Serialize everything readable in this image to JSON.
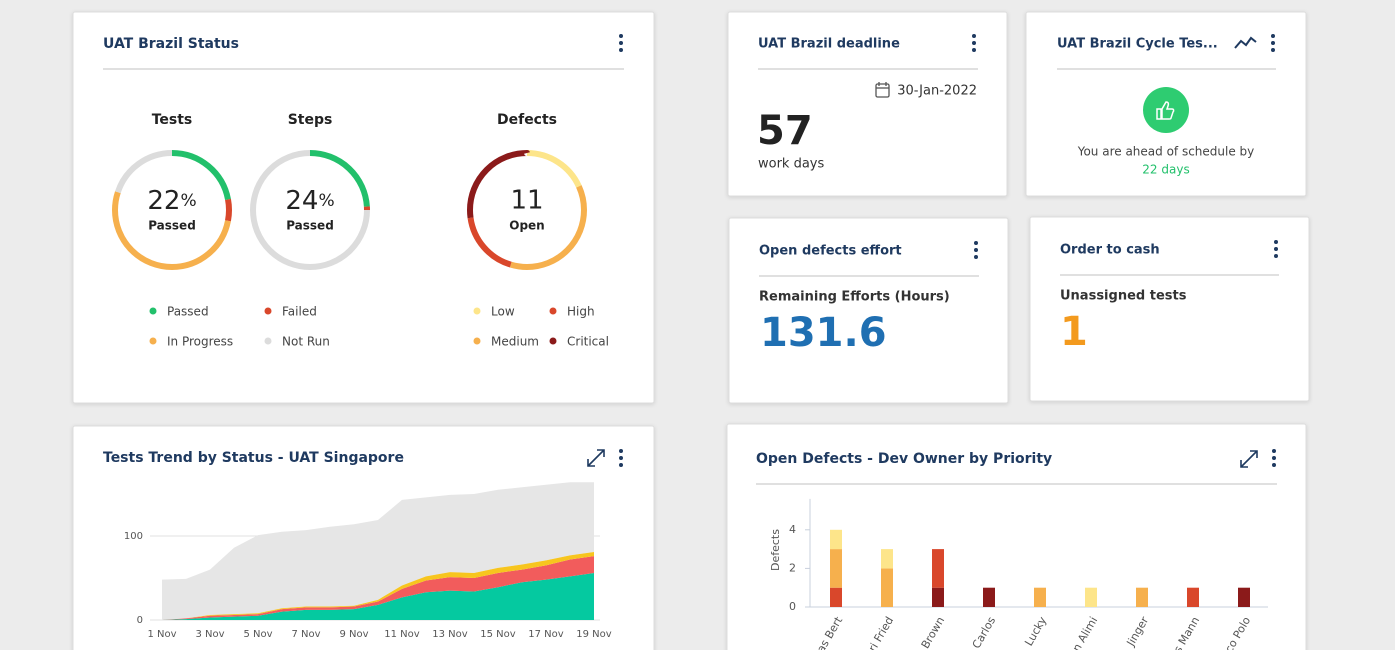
{
  "status": {
    "title": "UAT Brazil Status",
    "donuts": [
      {
        "label": "Tests",
        "unit": "%",
        "caption": "Passed",
        "segments": [
          {
            "color": "#22c06b",
            "value": 22
          },
          {
            "color": "#d9472b",
            "value": 6
          },
          {
            "color": "#f6b04d",
            "value": 52
          },
          {
            "color": "#dcdcdc",
            "value": 20
          }
        ]
      },
      {
        "label": "Steps",
        "unit": "%",
        "caption": "Passed",
        "segments": [
          {
            "color": "#22c06b",
            "value": 24
          },
          {
            "color": "#d9472b",
            "value": 1
          },
          {
            "color": "#f6b04d",
            "value": 0
          },
          {
            "color": "#dcdcdc",
            "value": 75
          }
        ]
      },
      {
        "label": "Defects",
        "caption": "Open",
        "total": 11,
        "segments": [
          {
            "color": "#fde58a",
            "value": 2
          },
          {
            "color": "#f6b04d",
            "value": 4
          },
          {
            "color": "#d9472b",
            "value": 2
          },
          {
            "color": "#8b1a1a",
            "value": 3
          }
        ]
      }
    ],
    "legends": [
      [
        {
          "name": "Passed",
          "color": "#22c06b"
        },
        {
          "name": "Failed",
          "color": "#d9472b"
        },
        {
          "name": "In Progress",
          "color": "#f6b04d"
        },
        {
          "name": "Not Run",
          "color": "#dcdcdc"
        }
      ],
      [
        {
          "name": "Low",
          "color": "#fde58a"
        },
        {
          "name": "High",
          "color": "#d9472b"
        },
        {
          "name": "Medium",
          "color": "#f6b04d"
        },
        {
          "name": "Critical",
          "color": "#8b1a1a"
        }
      ]
    ]
  },
  "deadline": {
    "title": "UAT Brazil deadline",
    "date": "30-Jan-2022",
    "value": 57,
    "caption": "work days"
  },
  "cycle": {
    "title": "UAT Brazil Cycle Tes...",
    "message": "You are ahead of schedule by",
    "highlight": "22 days"
  },
  "effort": {
    "title": "Open defects effort",
    "label": "Remaining Efforts (Hours)",
    "value": 131.6
  },
  "order": {
    "title": "Order to cash",
    "label": "Unassigned tests",
    "value": 1
  },
  "trend": {
    "type": "area",
    "title": "Tests Trend by Status - UAT Singapore",
    "categories": [
      "1 Nov",
      null,
      "3 Nov",
      null,
      "5 Nov",
      null,
      "7 Nov",
      null,
      "9 Nov",
      null,
      "11 Nov",
      null,
      "13 Nov",
      null,
      "15 Nov",
      null,
      "17 Nov",
      null,
      "19 Nov"
    ],
    "ylim": [
      0,
      165
    ],
    "yticks": [
      0,
      100
    ],
    "series": [
      {
        "color": "#05c9a0",
        "values": [
          0,
          1,
          3,
          4,
          5,
          10,
          12,
          12,
          13,
          18,
          27,
          33,
          35,
          34,
          39,
          45,
          48,
          52,
          56
        ]
      },
      {
        "color": "#f25c5c",
        "values": [
          0,
          1,
          2,
          2,
          2,
          3,
          3,
          3,
          3,
          4,
          10,
          14,
          16,
          16,
          17,
          15,
          17,
          20,
          20
        ]
      },
      {
        "color": "#f7c51e",
        "values": [
          0,
          0,
          1,
          1,
          1,
          1,
          1,
          1,
          1,
          2,
          4,
          5,
          6,
          6,
          6,
          6,
          6,
          5,
          5
        ]
      },
      {
        "color": "#e6e6e6",
        "values": [
          48,
          47,
          54,
          79,
          93,
          91,
          91,
          95,
          97,
          95,
          102,
          94,
          92,
          94,
          93,
          92,
          90,
          87,
          83
        ]
      }
    ]
  },
  "defects_chart": {
    "type": "bar",
    "title": "Open Defects - Dev Owner by Priority",
    "y_label": "Defects",
    "categories": [
      "tas Bert",
      "ri Fried",
      "Brown",
      "Carlos",
      "Lucky",
      "n Alimi",
      "Jinger",
      "s Mann",
      "co Polo"
    ],
    "ylim": [
      0,
      5.6
    ],
    "yticks": [
      0,
      2,
      4
    ],
    "series": [
      {
        "color": "#8b1a1a",
        "values": [
          0,
          0,
          1,
          1,
          0,
          0,
          0,
          0,
          1
        ]
      },
      {
        "color": "#d9472b",
        "values": [
          1,
          0,
          2,
          0,
          0,
          0,
          0,
          1,
          0
        ]
      },
      {
        "color": "#f6b04d",
        "values": [
          2,
          2,
          0,
          0,
          1,
          0,
          1,
          0,
          0
        ]
      },
      {
        "color": "#fde58a",
        "values": [
          1,
          1,
          0,
          0,
          0,
          1,
          0,
          0,
          0
        ]
      }
    ]
  }
}
